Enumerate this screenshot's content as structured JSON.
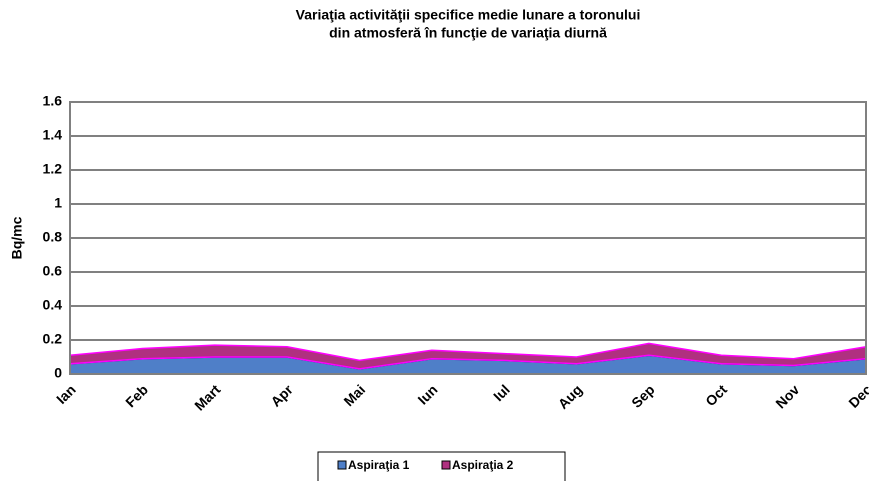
{
  "chart_data": {
    "type": "stacked_area",
    "title": [
      "Variaţia activităţii specifice medie lunare a toronului",
      "din atmosferă în funcţie de variaţia diurnă"
    ],
    "y_label": "Bq/mc",
    "categories": [
      "Ian",
      "Feb",
      "Mart",
      "Apr",
      "Mai",
      "Iun",
      "Iul",
      "Aug",
      "Sep",
      "Oct",
      "Nov",
      "Dec"
    ],
    "series": [
      {
        "name": "Aspiraţia 1",
        "color": "#4f7fc8",
        "values": [
          0.06,
          0.09,
          0.1,
          0.1,
          0.03,
          0.09,
          0.08,
          0.06,
          0.11,
          0.06,
          0.05,
          0.09
        ]
      },
      {
        "name": "Aspiraţia 2",
        "color": "#b03080",
        "values": [
          0.05,
          0.06,
          0.07,
          0.06,
          0.05,
          0.05,
          0.04,
          0.04,
          0.07,
          0.05,
          0.04,
          0.07
        ]
      }
    ],
    "ylim": [
      0,
      1.6
    ],
    "yticks": [
      0,
      0.2,
      0.4,
      0.6,
      0.8,
      1,
      1.2,
      1.4,
      1.6
    ],
    "grid": true,
    "legend": "bottom"
  }
}
